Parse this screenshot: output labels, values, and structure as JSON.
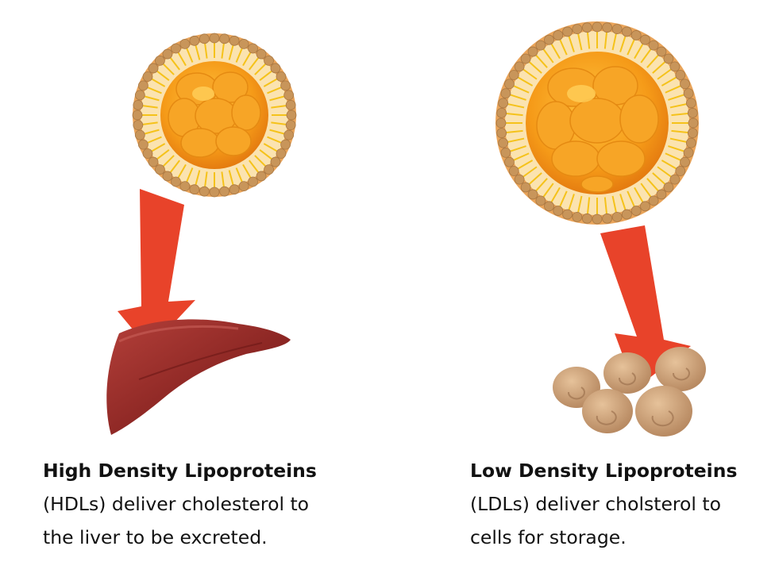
{
  "colors": {
    "arrow": "#e8432a",
    "particle_core": "#f39a1c",
    "particle_core_light": "#ffb938",
    "particle_shell": "#c8955a",
    "lipid_tail": "#f5c21a",
    "liver": "#8e2a26",
    "cells": "#c9a07a",
    "text": "#111111"
  },
  "hdl": {
    "icons": [
      "lipoprotein-particle-icon",
      "arrow-down-icon",
      "liver-icon"
    ],
    "title": "High Density Lipoproteins",
    "line1": "(HDLs) deliver cholesterol to",
    "line2": "the liver to be excreted."
  },
  "ldl": {
    "icons": [
      "lipoprotein-particle-icon",
      "arrow-down-icon",
      "cells-icon"
    ],
    "title": "Low Density Lipoproteins",
    "line1": "(LDLs) deliver cholsterol to",
    "line2": "cells for storage."
  }
}
